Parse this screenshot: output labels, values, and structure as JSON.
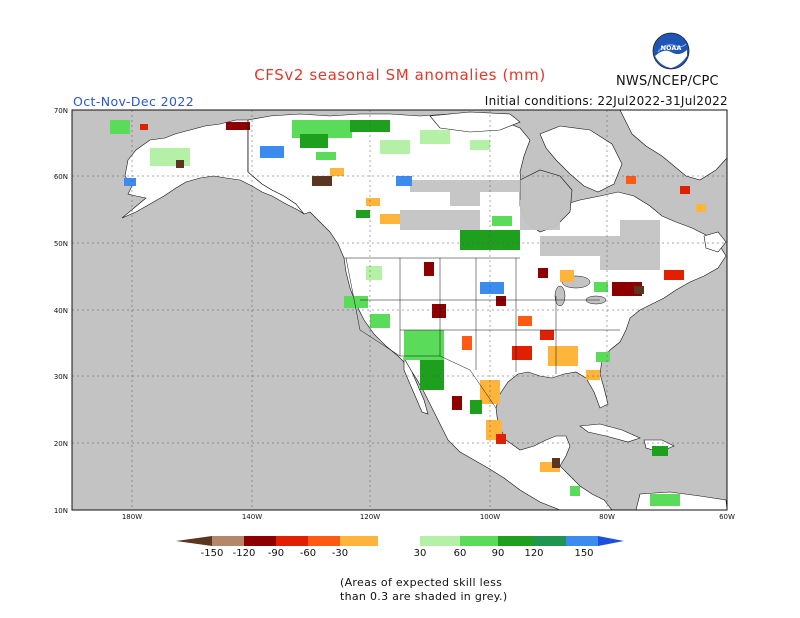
{
  "title": "CFSv2 seasonal SM anomalies (mm)",
  "season": "Oct-Nov-Dec 2022",
  "initial_conditions": "Initial conditions: 22Jul2022-31Jul2022",
  "agency": "NWS/NCEP/CPC",
  "logo": {
    "text": "NOAA",
    "icon": "noaa-logo-icon"
  },
  "axes": {
    "x_ticks": [
      "180W",
      "140W",
      "120W",
      "100W",
      "80W",
      "60W"
    ],
    "y_ticks": [
      "70N",
      "60N",
      "50N",
      "40N",
      "30N",
      "20N",
      "10N"
    ]
  },
  "legend": {
    "labels": [
      "-150",
      "-120",
      "-90",
      "-60",
      "-30",
      "30",
      "60",
      "90",
      "120",
      "150"
    ],
    "colors": [
      "#5a3520",
      "#b4876a",
      "#8c0000",
      "#e02000",
      "#ff5a14",
      "#ffb53c",
      "#ffffff",
      "#b4f0a5",
      "#5adc5a",
      "#1ea01e",
      "#1e9650",
      "#3c8cf0",
      "#1e50dc"
    ]
  },
  "note_lines": [
    "(Areas of expected skill less",
    "than 0.3 are shaded in grey.)"
  ],
  "colors": {
    "ocean": "#c3c3c3",
    "land": "#ffffff",
    "low_skill": "#c3c3c3",
    "title": "#e0392b",
    "season": "#2f58c8"
  }
}
